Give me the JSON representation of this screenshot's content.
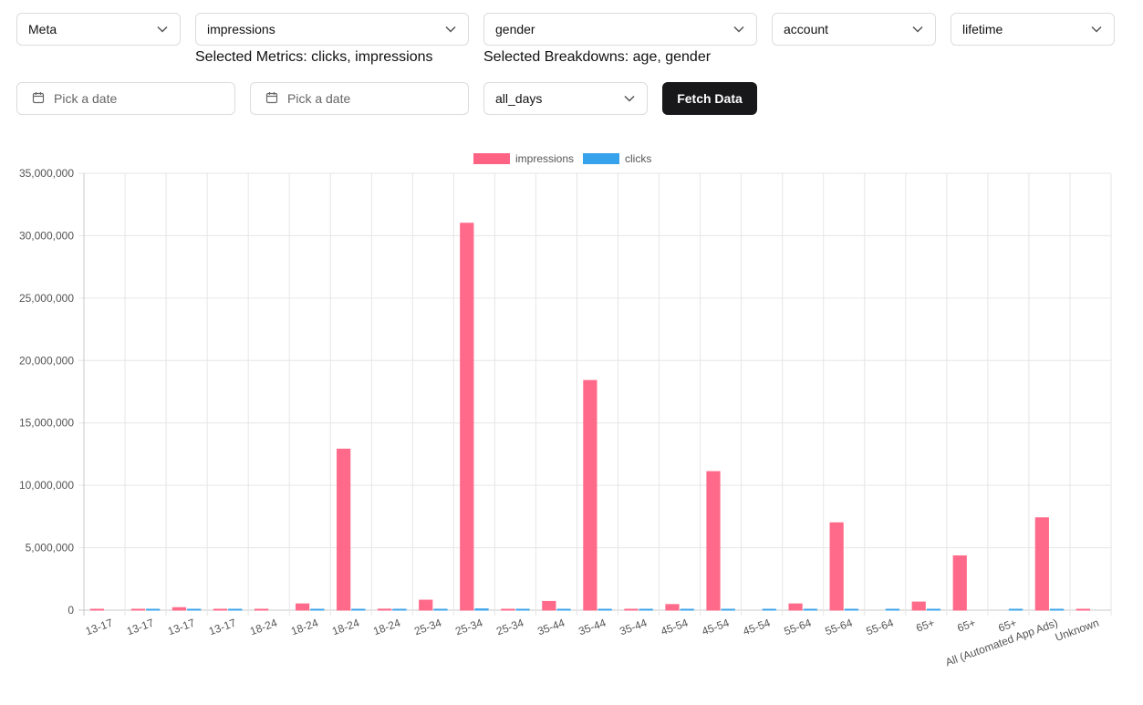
{
  "controls": {
    "platform": "Meta",
    "metric": "impressions",
    "breakdown": "gender",
    "level": "account",
    "date_preset": "lifetime",
    "start_date_placeholder": "Pick a date",
    "end_date_placeholder": "Pick a date",
    "time_increment": "all_days",
    "fetch_label": "Fetch Data",
    "selected_metrics": "Selected Metrics: clicks, impressions",
    "selected_breakdowns": "Selected Breakdowns: age, gender"
  },
  "colors": {
    "impressions": "#ff6384",
    "clicks": "#36a2eb"
  },
  "icons": {
    "dropdown": "chevron-down-icon",
    "date": "calendar-icon"
  },
  "chart_data": {
    "type": "bar",
    "categories": [
      "13-17",
      "13-17",
      "13-17",
      "13-17",
      "18-24",
      "18-24",
      "18-24",
      "18-24",
      "25-34",
      "25-34",
      "25-34",
      "35-44",
      "35-44",
      "35-44",
      "45-54",
      "45-54",
      "45-54",
      "55-64",
      "55-64",
      "55-64",
      "65+",
      "65+",
      "65+",
      "All (Automated App Ads)",
      "Unknown"
    ],
    "series": [
      {
        "name": "impressions",
        "values": [
          10000,
          30000,
          200000,
          20000,
          20000,
          500000,
          12900000,
          80000,
          800000,
          31000000,
          20000,
          700000,
          18400000,
          20000,
          450000,
          11100000,
          0,
          500000,
          7000000,
          0,
          650000,
          4350000,
          0,
          7400000,
          15000
        ]
      },
      {
        "name": "clicks",
        "values": [
          0,
          10000,
          10000,
          10000,
          0,
          20000,
          20000,
          40000,
          20000,
          100000,
          10000,
          40000,
          40000,
          10000,
          20000,
          20000,
          20000,
          10000,
          10000,
          10000,
          20000,
          0,
          10000,
          10000,
          0
        ]
      }
    ],
    "y_ticks": [
      "0",
      "5,000,000",
      "10,000,000",
      "15,000,000",
      "20,000,000",
      "25,000,000",
      "30,000,000",
      "35,000,000"
    ],
    "ylim": [
      0,
      35000000
    ],
    "grid": true,
    "legend_position": "top-center"
  }
}
